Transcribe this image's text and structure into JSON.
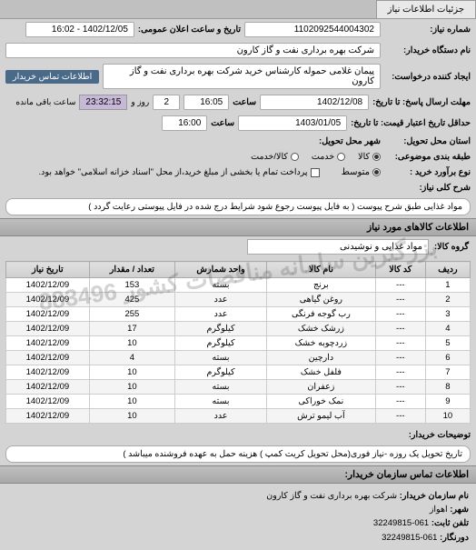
{
  "tab": {
    "title": "جزئیات اطلاعات نیاز"
  },
  "header": {
    "req_no_label": "شماره نیاز:",
    "req_no": "1102092544004302",
    "announce_label": "تاریخ و ساعت اعلان عمومی:",
    "announce_value": "1402/12/05 - 16:02",
    "buyer_label": "نام دستگاه خریدار:",
    "buyer": "شرکت بهره برداری نفت و گاز کارون",
    "creator_label": "ایجاد کننده درخواست:",
    "creator": "پیمان غلامی حموله کارشناس خرید شرکت بهره برداری نفت و گاز کارون",
    "buyer_contact_btn": "اطلاعات تماس خریدار",
    "deadline_send_label": "مهلت ارسال پاسخ: تا تاریخ:",
    "deadline_send_date": "1402/12/08",
    "time_label": "ساعت",
    "deadline_send_time": "16:05",
    "days_word": "روز و",
    "days_left": "2",
    "countdown": "23:32:15",
    "remaining_text": "ساعت باقی مانده",
    "validity_label": "حداقل تاریخ اعتبار قیمت: تا تاریخ:",
    "validity_date": "1403/01/05",
    "validity_time": "16:00",
    "state_label": "استان محل تحویل:",
    "city_label": "شهر محل تحویل:",
    "budget_label": "طبقه بندی موضوعی:",
    "budget_opt1": "کالا",
    "budget_opt2": "خدمت",
    "budget_opt3": "کالا/خدمت",
    "pay_label": "نوع برآورد خرید :",
    "pay_opt1": "متوسط",
    "pay_check1": "پرداخت تمام یا بخشی از مبلغ خرید،از محل \"اسناد خزانه اسلامی\" خواهد بود."
  },
  "need": {
    "title_label": "شرح کلی نیاز:",
    "title": "مواد غذایی طبق شرح پیوست ( به فایل پیوست رجوع شود شرایط درج شده در فایل پیوستی رعایت گردد )"
  },
  "items": {
    "header": "اطلاعات کالاهای مورد نیاز",
    "group_label": "گروه کالا:",
    "group_value": "مواد غذایی و نوشیدنی",
    "columns": [
      "ردیف",
      "کد کالا",
      "نام کالا",
      "واحد شمارش",
      "تعداد / مقدار",
      "تاریخ نیاز"
    ],
    "rows": [
      [
        "1",
        "---",
        "برنج",
        "بسته",
        "153",
        "1402/12/09"
      ],
      [
        "2",
        "---",
        "روغن گیاهی",
        "عدد",
        "425",
        "1402/12/09"
      ],
      [
        "3",
        "---",
        "رب گوجه فرنگی",
        "عدد",
        "255",
        "1402/12/09"
      ],
      [
        "4",
        "---",
        "زرشک خشک",
        "کیلوگرم",
        "17",
        "1402/12/09"
      ],
      [
        "5",
        "---",
        "زردچوبه خشک",
        "کیلوگرم",
        "10",
        "1402/12/09"
      ],
      [
        "6",
        "---",
        "دارچین",
        "بسته",
        "4",
        "1402/12/09"
      ],
      [
        "7",
        "---",
        "فلفل خشک",
        "کیلوگرم",
        "10",
        "1402/12/09"
      ],
      [
        "8",
        "---",
        "زعفران",
        "بسته",
        "10",
        "1402/12/09"
      ],
      [
        "9",
        "---",
        "نمک خوراکی",
        "بسته",
        "10",
        "1402/12/09"
      ],
      [
        "10",
        "---",
        "آب لیمو ترش",
        "عدد",
        "10",
        "1402/12/09"
      ]
    ]
  },
  "buyer_note": {
    "label": "توضیحات خریدار:",
    "text": "تاریخ تحویل یک روزه -نیاز فوری(محل تحویل کریت کمپ ) هزینه حمل به عهده فروشنده میباشد )"
  },
  "contact": {
    "header": "اطلاعات تماس سازمان خریدار:",
    "org_label": "نام سازمان خریدار:",
    "org": "شرکت بهره برداری نفت و گاز کارون",
    "city_label": "شهر:",
    "city": "اهواز",
    "phone_label": "تلفن ثابت:",
    "phone": "061-32249815",
    "fax_label": "دورنگار:",
    "fax": "061-32249815"
  },
  "watermark": "بزرگترین سامانه مناقصات کشور 883496"
}
